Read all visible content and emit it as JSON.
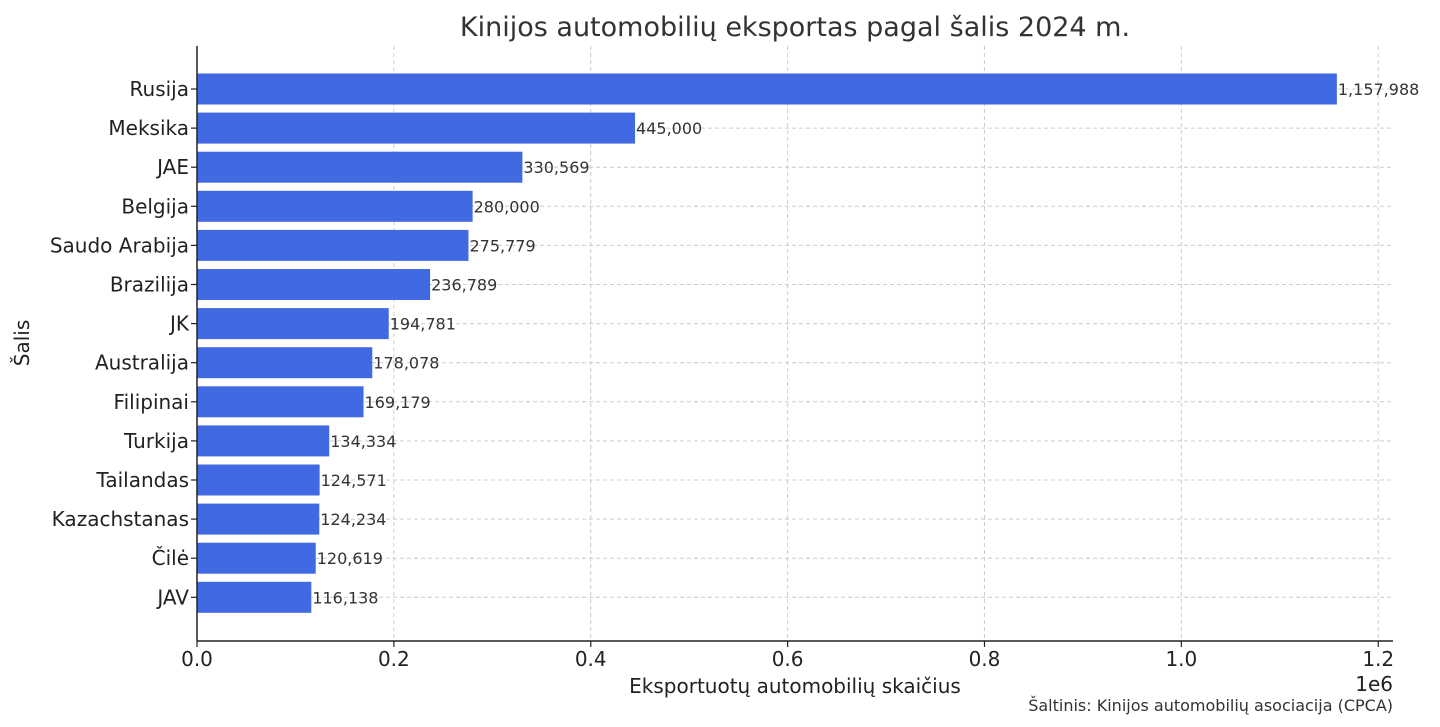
{
  "chart_data": {
    "type": "bar",
    "orientation": "horizontal",
    "title": "Kinijos automobilių eksportas pagal šalis 2024 m.",
    "xlabel": "Eksportuotų automobilių skaičius",
    "ylabel": "Šalis",
    "x_offset_label": "1e6",
    "x_ticks": [
      "0.0",
      "0.2",
      "0.4",
      "0.6",
      "0.8",
      "1.0",
      "1.2"
    ],
    "x_tick_values": [
      0,
      200000,
      400000,
      600000,
      800000,
      1000000,
      1200000
    ],
    "xlim": [
      0,
      1215000
    ],
    "grid": true,
    "bar_color": "#4169e1",
    "categories": [
      "Rusija",
      "Meksika",
      "JAE",
      "Belgija",
      "Saudo Arabija",
      "Brazilija",
      "JK",
      "Australija",
      "Filipinai",
      "Turkija",
      "Tailandas",
      "Kazachstanas",
      "Čilė",
      "JAV"
    ],
    "values": [
      1157988,
      445000,
      330569,
      280000,
      275779,
      236789,
      194781,
      178078,
      169179,
      134334,
      124571,
      124234,
      120619,
      116138
    ],
    "value_labels": [
      "1,157,988",
      "445,000",
      "330,569",
      "280,000",
      "275,779",
      "236,789",
      "194,781",
      "178,078",
      "169,179",
      "134,334",
      "124,571",
      "124,234",
      "120,619",
      "116,138"
    ]
  },
  "source": "Šaltinis: Kinijos automobilių asociacija (CPCA)"
}
